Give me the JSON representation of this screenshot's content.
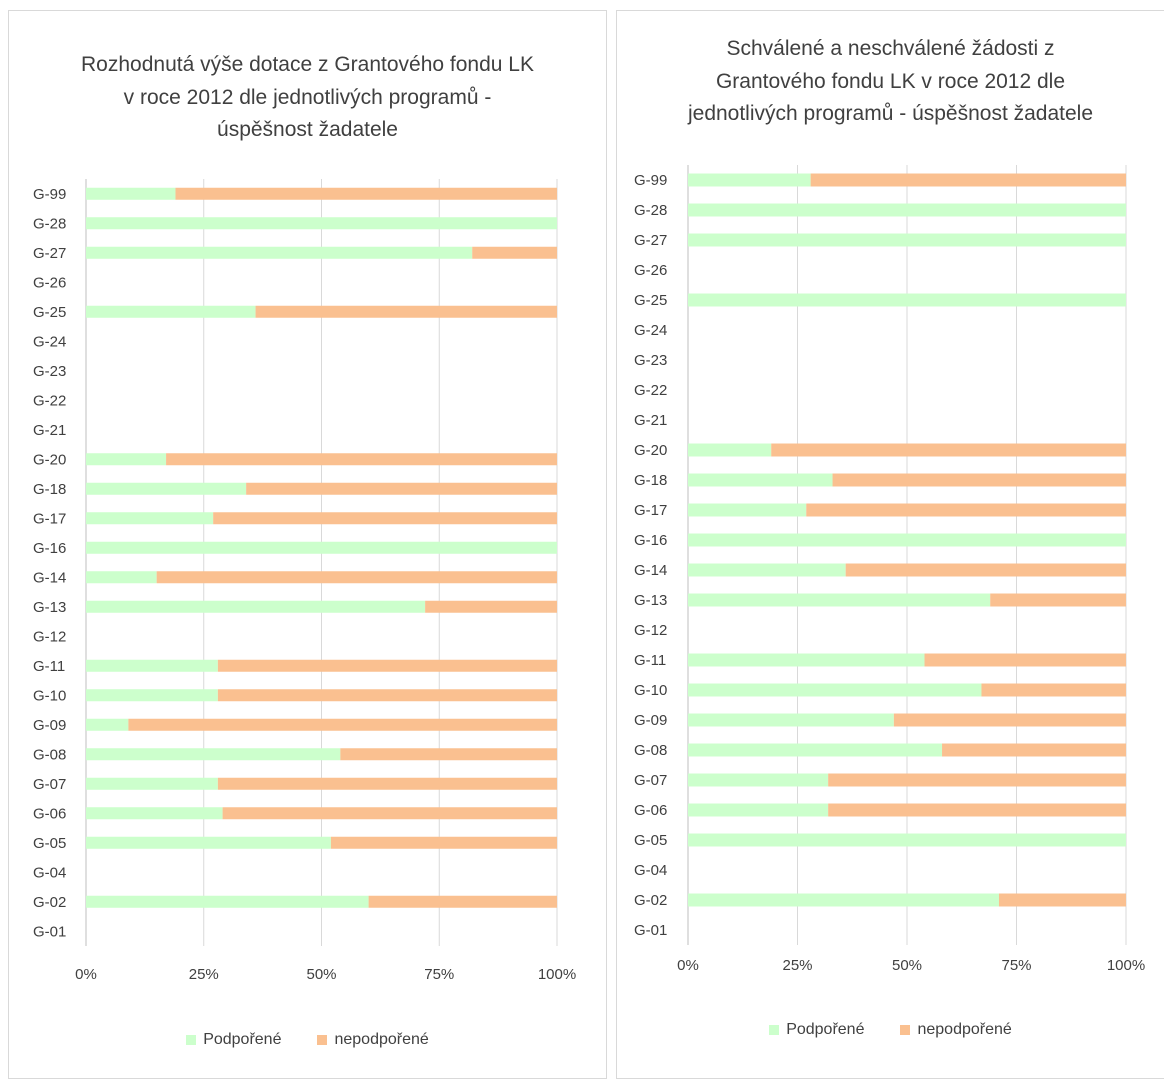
{
  "colors": {
    "supported": "#ccffcc",
    "unsupported": "#fac090",
    "grid": "#d9d9d9",
    "text": "#404040"
  },
  "legend": {
    "supported": "Podpořené",
    "unsupported": "nepodpořené",
    "position": "bottom"
  },
  "chart_data": [
    {
      "type": "bar",
      "orientation": "horizontal",
      "stacked": "percent",
      "title": "Rozhodnutá výše dotace z Grantového fondu LK v roce 2012 dle jednotlivých programů - úspěšnost žadatele",
      "categories": [
        "G-99",
        "G-28",
        "G-27",
        "G-26",
        "G-25",
        "G-24",
        "G-23",
        "G-22",
        "G-21",
        "G-20",
        "G-18",
        "G-17",
        "G-16",
        "G-14",
        "G-13",
        "G-12",
        "G-11",
        "G-10",
        "G-09",
        "G-08",
        "G-07",
        "G-06",
        "G-05",
        "G-04",
        "G-02",
        "G-01"
      ],
      "x_ticks": [
        "0%",
        "25%",
        "50%",
        "75%",
        "100%"
      ],
      "xlim": [
        0,
        100
      ],
      "grid": true,
      "series": [
        {
          "name": "Podpořené",
          "values": [
            19,
            100,
            82,
            0,
            36,
            0,
            0,
            0,
            0,
            17,
            34,
            27,
            100,
            15,
            72,
            0,
            28,
            28,
            9,
            54,
            28,
            29,
            52,
            0,
            60,
            0
          ]
        },
        {
          "name": "nepodpořené",
          "values": [
            81,
            0,
            18,
            0,
            64,
            0,
            0,
            0,
            0,
            83,
            66,
            73,
            0,
            85,
            28,
            0,
            72,
            72,
            91,
            46,
            72,
            71,
            48,
            0,
            40,
            0
          ]
        }
      ]
    },
    {
      "type": "bar",
      "orientation": "horizontal",
      "stacked": "percent",
      "title": "Schválené a neschválené žádosti z Grantového fondu LK v roce 2012 dle jednotlivých programů - úspěšnost žadatele",
      "categories": [
        "G-99",
        "G-28",
        "G-27",
        "G-26",
        "G-25",
        "G-24",
        "G-23",
        "G-22",
        "G-21",
        "G-20",
        "G-18",
        "G-17",
        "G-16",
        "G-14",
        "G-13",
        "G-12",
        "G-11",
        "G-10",
        "G-09",
        "G-08",
        "G-07",
        "G-06",
        "G-05",
        "G-04",
        "G-02",
        "G-01"
      ],
      "x_ticks": [
        "0%",
        "25%",
        "50%",
        "75%",
        "100%"
      ],
      "xlim": [
        0,
        100
      ],
      "grid": true,
      "series": [
        {
          "name": "Podpořené",
          "values": [
            28,
            100,
            100,
            0,
            100,
            0,
            0,
            0,
            0,
            19,
            33,
            27,
            100,
            36,
            69,
            0,
            54,
            67,
            47,
            58,
            32,
            32,
            100,
            0,
            71,
            0
          ]
        },
        {
          "name": "nepodpořené",
          "values": [
            72,
            0,
            0,
            0,
            0,
            0,
            0,
            0,
            0,
            81,
            67,
            73,
            0,
            64,
            31,
            0,
            46,
            33,
            53,
            42,
            68,
            68,
            0,
            0,
            29,
            0
          ]
        }
      ]
    }
  ]
}
